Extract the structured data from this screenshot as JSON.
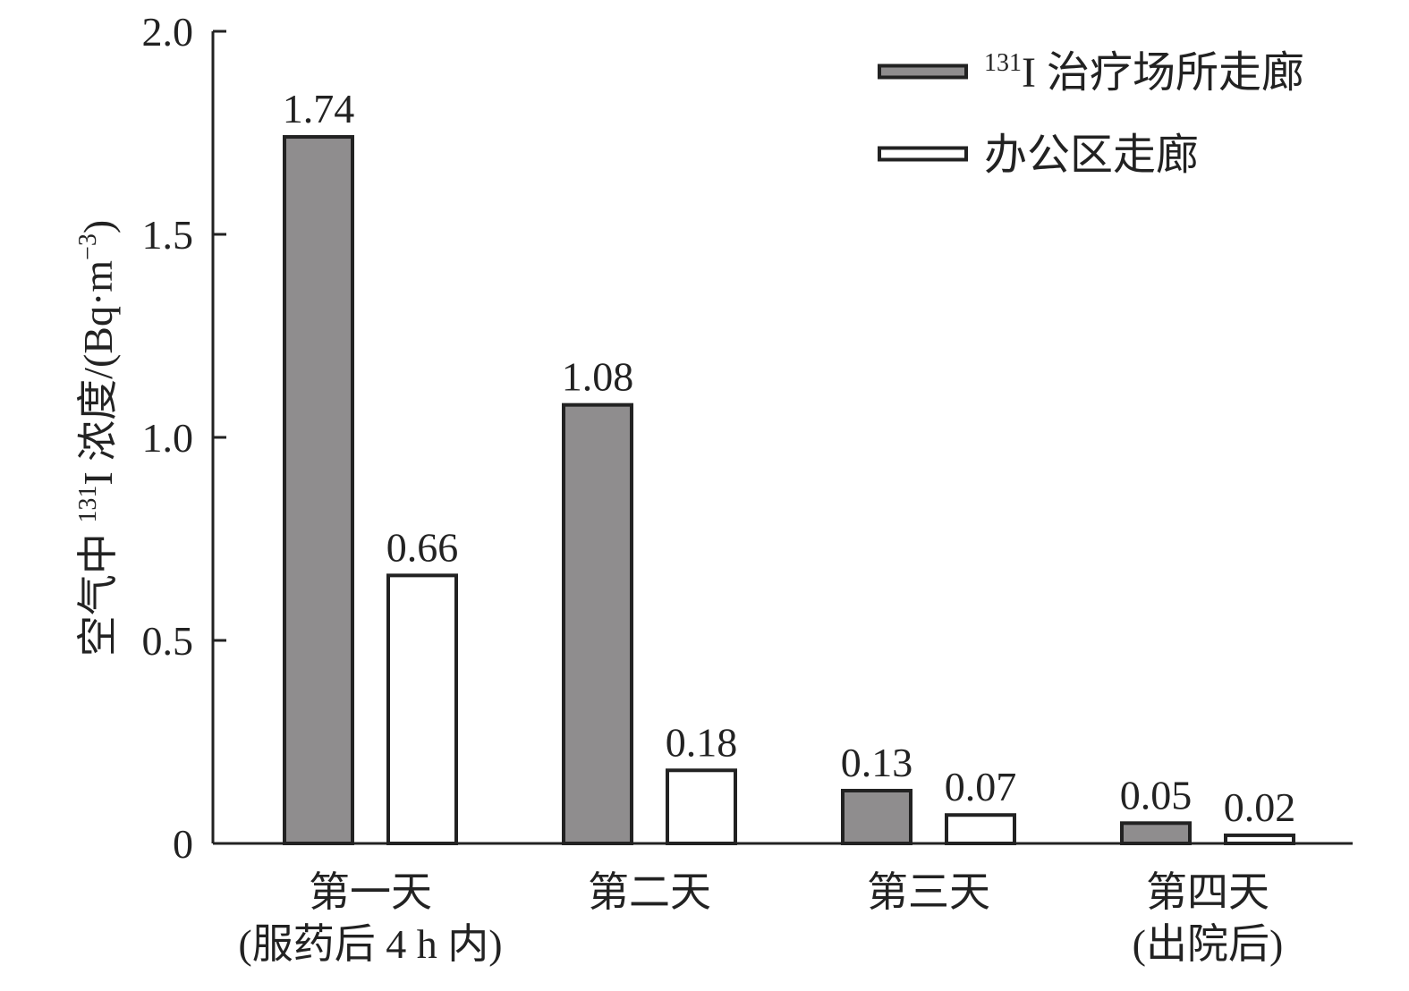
{
  "chart_data": {
    "type": "bar",
    "categories": [
      [
        "第一天",
        "(服药后 4 h 内)"
      ],
      [
        "第二天",
        ""
      ],
      [
        "第三天",
        ""
      ],
      [
        "第四天",
        "(出院后)"
      ]
    ],
    "series": [
      {
        "name_sup": "131",
        "name_main": "I 治疗场所走廊",
        "values": [
          1.74,
          1.08,
          0.13,
          0.05
        ],
        "color": "#8f8d8e"
      },
      {
        "name_sup": "",
        "name_main": "办公区走廊",
        "values": [
          0.66,
          0.18,
          0.07,
          0.02
        ],
        "color": "#ffffff"
      }
    ],
    "data_labels": [
      [
        "1.74",
        "1.08",
        "0.13",
        "0.05"
      ],
      [
        "0.66",
        "0.18",
        "0.07",
        "0.02"
      ]
    ],
    "ylabel": {
      "prefix": "空气中 ",
      "sup1": "131",
      "mid": "I 浓度/(Bq·m",
      "sup2": "−3",
      "suffix": ")"
    },
    "ylim": [
      0,
      2.0
    ],
    "yticks": [
      0,
      0.5,
      1.0,
      1.5,
      2.0
    ],
    "ytick_labels": [
      "0",
      "0.5",
      "1.0",
      "1.5",
      "2.0"
    ],
    "grid": false,
    "legend_position": "top-right",
    "outline_color": "#222222"
  }
}
